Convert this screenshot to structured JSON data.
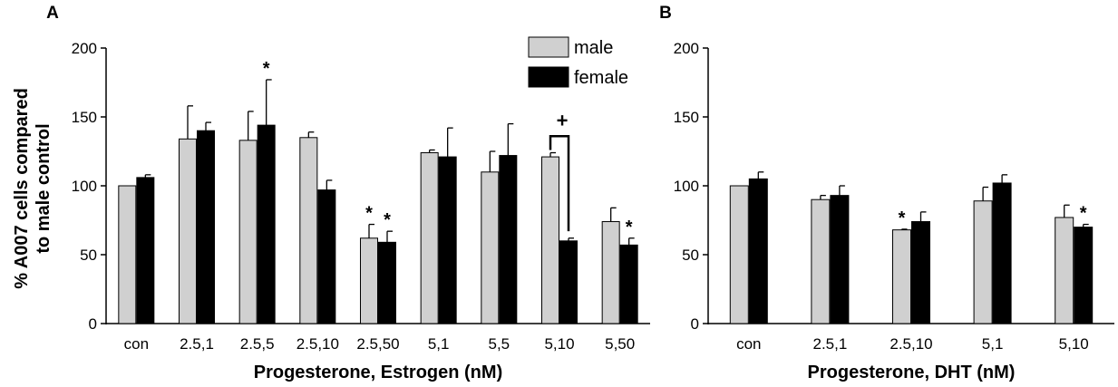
{
  "chart_data": [
    {
      "panel": "A",
      "type": "bar",
      "xlabel": "Progesterone, Estrogen (nM)",
      "ylabel": "% A007 cells compared to male control",
      "ylim": [
        0,
        200
      ],
      "yticks": [
        0,
        50,
        100,
        150,
        200
      ],
      "categories": [
        "con",
        "2.5,1",
        "2.5,5",
        "2.5,10",
        "2.5,50",
        "5,1",
        "5,5",
        "5,10",
        "5,50"
      ],
      "series": [
        {
          "name": "male",
          "color": "#d0d0d0",
          "values": [
            100,
            134,
            133,
            135,
            62,
            124,
            110,
            121,
            74
          ],
          "errors": [
            0,
            24,
            21,
            4,
            10,
            2,
            15,
            3,
            10
          ],
          "markers": [
            "",
            "",
            "",
            "",
            "*",
            "",
            "",
            "",
            ""
          ]
        },
        {
          "name": "female",
          "color": "#000000",
          "values": [
            106,
            140,
            144,
            97,
            59,
            121,
            122,
            60,
            57
          ],
          "errors": [
            2,
            6,
            33,
            7,
            8,
            21,
            23,
            2,
            5
          ],
          "markers": [
            "",
            "",
            "*",
            "",
            "*",
            "",
            "",
            "",
            "*"
          ]
        }
      ],
      "bracket": {
        "category": "5,10",
        "label": "+"
      },
      "legend": {
        "position": "top-right",
        "entries": [
          "male",
          "female"
        ]
      },
      "grid": false
    },
    {
      "panel": "B",
      "type": "bar",
      "xlabel": "Progesterone, DHT (nM)",
      "ylabel": "",
      "ylim": [
        0,
        200
      ],
      "yticks": [
        0,
        50,
        100,
        150,
        200
      ],
      "categories": [
        "con",
        "2.5,1",
        "2.5,10",
        "5,1",
        "5,10"
      ],
      "series": [
        {
          "name": "male",
          "color": "#d0d0d0",
          "values": [
            100,
            90,
            68,
            89,
            77
          ],
          "errors": [
            0,
            3,
            0.5,
            10,
            9
          ],
          "markers": [
            "",
            "",
            "*",
            "",
            ""
          ]
        },
        {
          "name": "female",
          "color": "#000000",
          "values": [
            105,
            93,
            74,
            102,
            70
          ],
          "errors": [
            5,
            7,
            7,
            6,
            2
          ],
          "markers": [
            "",
            "",
            "",
            "",
            "*"
          ]
        }
      ],
      "grid": false
    }
  ]
}
